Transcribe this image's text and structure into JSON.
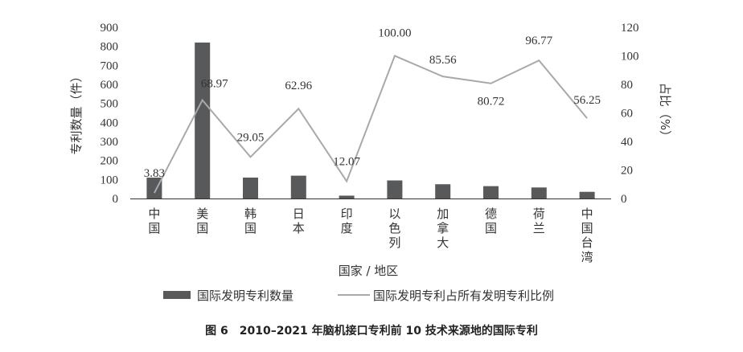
{
  "chart_data": {
    "type": "bar+line",
    "categories": [
      "中国",
      "美国",
      "韩国",
      "日本",
      "印度",
      "以色列",
      "加拿大",
      "德国",
      "荷兰",
      "中国台湾"
    ],
    "series": [
      {
        "name": "国际发明专利数量",
        "type": "bar",
        "axis": "left",
        "color": "#58595b",
        "values": [
          110,
          820,
          110,
          120,
          15,
          95,
          75,
          65,
          58,
          35
        ]
      },
      {
        "name": "国际发明专利占所有发明专利比例",
        "type": "line",
        "axis": "right",
        "color": "#a7a9ac",
        "values": [
          3.83,
          68.97,
          29.05,
          62.96,
          12.07,
          100.0,
          85.56,
          80.72,
          96.77,
          56.25
        ],
        "labels": [
          "3.83",
          "68.97",
          "29.05",
          "62.96",
          "12.07",
          "100.00",
          "85.56",
          "80.72",
          "96.77",
          "56.25"
        ]
      }
    ],
    "xlabel": "国家 / 地区",
    "ylabel_left": "专利数量（件）",
    "ylabel_right": "占比（%）",
    "ylim_left": [
      0,
      900
    ],
    "yticks_left": [
      "0",
      "100",
      "200",
      "300",
      "400",
      "500",
      "600",
      "700",
      "800",
      "900"
    ],
    "ylim_right": [
      0,
      120
    ],
    "yticks_right": [
      "0",
      "20",
      "40",
      "60",
      "80",
      "100",
      "120"
    ],
    "legend_position": "bottom",
    "caption": "图 6　2010–2021 年脑机接口专利前 10 技术来源地的国际专利"
  }
}
